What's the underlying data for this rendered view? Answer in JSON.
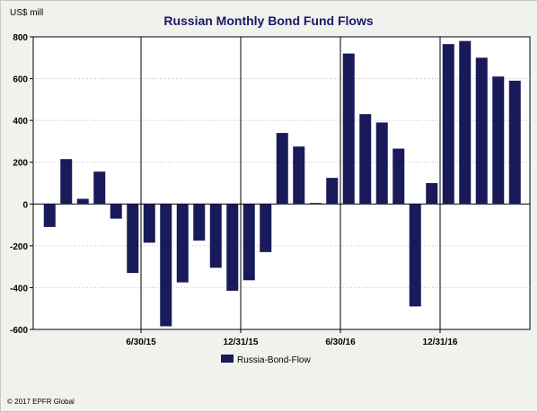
{
  "chart_data": {
    "type": "bar",
    "title": "Russian Monthly Bond Fund Flows",
    "unit_label": "US$ mill",
    "ylim": [
      -600,
      800
    ],
    "yticks": [
      800,
      600,
      400,
      200,
      0,
      -200,
      -400,
      -600
    ],
    "x_tick_labels": [
      "6/30/15",
      "12/31/15",
      "6/30/16",
      "12/31/16"
    ],
    "x_tick_after_index": [
      5,
      11,
      17,
      23
    ],
    "grid": true,
    "legend_position": "bottom-center",
    "bar_color": "#191a5a",
    "series": [
      {
        "name": "Russia-Bond-Flow",
        "values": [
          -110,
          215,
          25,
          155,
          -70,
          -330,
          -185,
          -585,
          -375,
          -175,
          -305,
          -415,
          -365,
          -230,
          340,
          275,
          5,
          125,
          720,
          430,
          390,
          265,
          -490,
          100,
          765,
          780,
          700,
          610,
          590
        ]
      }
    ]
  },
  "footer": {
    "credit": "© 2017 EPFR Global"
  }
}
